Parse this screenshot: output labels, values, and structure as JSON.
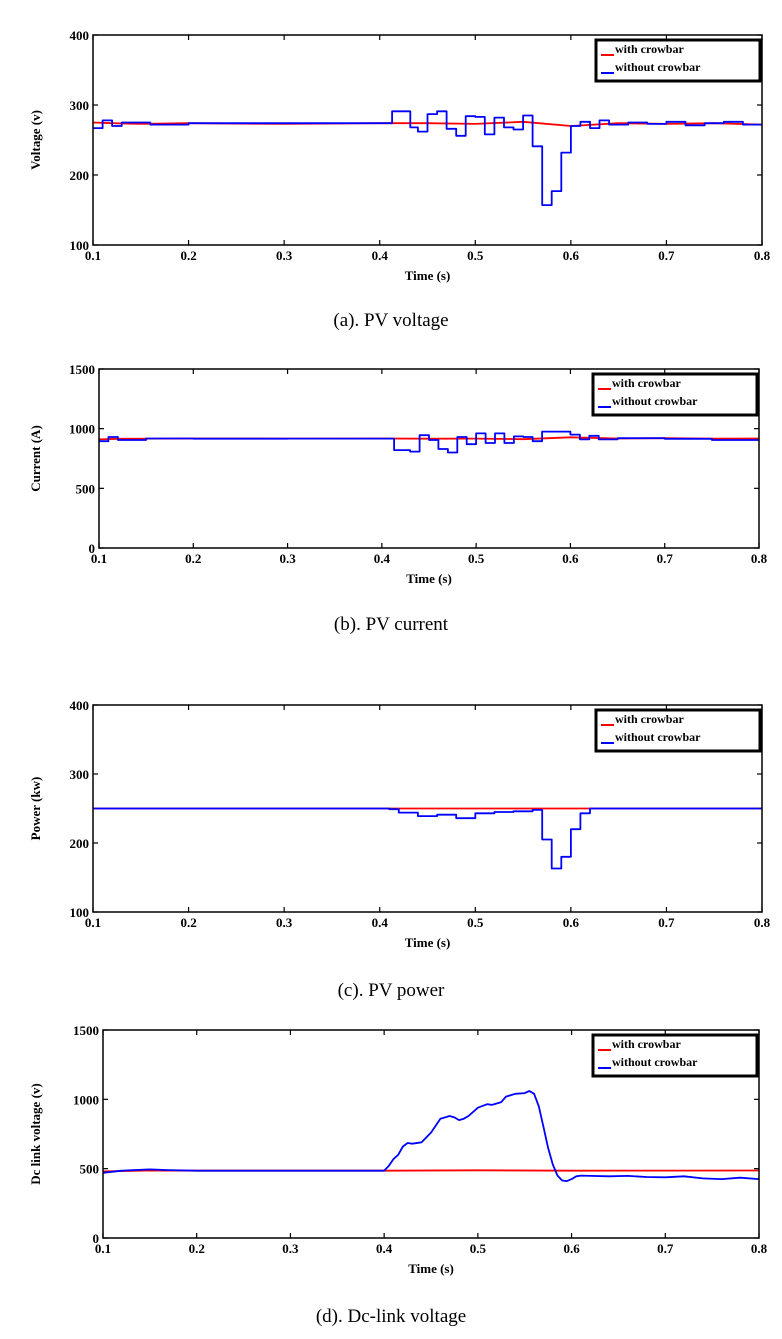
{
  "colors": {
    "with_crowbar": "#ff0000",
    "without_crowbar": "#0000ff",
    "axes": "#000000"
  },
  "chart_data": [
    {
      "type": "line",
      "caption": "(a). PV voltage",
      "xlabel": "Time (s)",
      "ylabel": "Voltage (v)",
      "xlim": [
        0.1,
        0.8
      ],
      "ylim": [
        100,
        400
      ],
      "xticks": [
        "0.1",
        "0.2",
        "0.3",
        "0.4",
        "0.5",
        "0.6",
        "0.7",
        "0.8"
      ],
      "yticks": [
        "100",
        "200",
        "300",
        "400"
      ],
      "legend_position": "top-right",
      "series": [
        {
          "name": "with crowbar",
          "color": "#ff0000",
          "step": false,
          "x": [
            0.1,
            0.12,
            0.15,
            0.2,
            0.3,
            0.4,
            0.45,
            0.5,
            0.55,
            0.6,
            0.65,
            0.7,
            0.75,
            0.8
          ],
          "y": [
            275,
            274,
            273,
            274,
            273,
            274,
            274,
            273,
            276,
            270,
            274,
            273,
            274,
            272
          ]
        },
        {
          "name": "without crowbar",
          "color": "#0000ff",
          "step": true,
          "x": [
            0.1,
            0.11,
            0.12,
            0.13,
            0.16,
            0.2,
            0.3,
            0.413,
            0.432,
            0.44,
            0.45,
            0.46,
            0.47,
            0.48,
            0.49,
            0.5,
            0.51,
            0.52,
            0.53,
            0.54,
            0.55,
            0.56,
            0.57,
            0.58,
            0.59,
            0.6,
            0.61,
            0.62,
            0.63,
            0.64,
            0.66,
            0.68,
            0.7,
            0.72,
            0.74,
            0.76,
            0.78,
            0.8
          ],
          "y": [
            267,
            278,
            270,
            275,
            272,
            274,
            274,
            291,
            268,
            262,
            287,
            291,
            266,
            256,
            284,
            283,
            258,
            282,
            268,
            265,
            285,
            241,
            157,
            177,
            232,
            270,
            276,
            267,
            278,
            272,
            275,
            273,
            276,
            271,
            274,
            276,
            272,
            272
          ]
        }
      ]
    },
    {
      "type": "line",
      "caption": "(b). PV current",
      "xlabel": "Time (s)",
      "ylabel": "Current (A)",
      "xlim": [
        0.1,
        0.8
      ],
      "ylim": [
        0,
        1500
      ],
      "xticks": [
        "0.1",
        "0.2",
        "0.3",
        "0.4",
        "0.5",
        "0.6",
        "0.7",
        "0.8"
      ],
      "yticks": [
        "0",
        "500",
        "1000",
        "1500"
      ],
      "legend_position": "top-right",
      "series": [
        {
          "name": "with crowbar",
          "color": "#ff0000",
          "step": false,
          "x": [
            0.1,
            0.12,
            0.2,
            0.3,
            0.4,
            0.45,
            0.5,
            0.55,
            0.6,
            0.65,
            0.7,
            0.75,
            0.8
          ],
          "y": [
            910,
            915,
            918,
            917,
            918,
            916,
            917,
            912,
            928,
            918,
            920,
            917,
            918
          ]
        },
        {
          "name": "without crowbar",
          "color": "#0000ff",
          "step": true,
          "x": [
            0.1,
            0.11,
            0.12,
            0.15,
            0.2,
            0.3,
            0.413,
            0.43,
            0.44,
            0.45,
            0.46,
            0.47,
            0.48,
            0.49,
            0.5,
            0.51,
            0.52,
            0.53,
            0.54,
            0.55,
            0.56,
            0.57,
            0.6,
            0.61,
            0.62,
            0.63,
            0.65,
            0.7,
            0.75,
            0.8
          ],
          "y": [
            895,
            930,
            905,
            918,
            916,
            917,
            820,
            808,
            945,
            905,
            830,
            800,
            930,
            870,
            960,
            880,
            960,
            880,
            935,
            930,
            895,
            975,
            950,
            910,
            940,
            910,
            920,
            915,
            905,
            918
          ]
        }
      ]
    },
    {
      "type": "line",
      "caption": "(c). PV power",
      "xlabel": "Time (s)",
      "ylabel": "Power (kw)",
      "xlim": [
        0.1,
        0.8
      ],
      "ylim": [
        100,
        400
      ],
      "xticks": [
        "0.1",
        "0.2",
        "0.3",
        "0.4",
        "0.5",
        "0.6",
        "0.7",
        "0.8"
      ],
      "yticks": [
        "100",
        "200",
        "300",
        "400"
      ],
      "legend_position": "top-right",
      "series": [
        {
          "name": "with crowbar",
          "color": "#ff0000",
          "step": false,
          "x": [
            0.1,
            0.8
          ],
          "y": [
            250,
            250
          ]
        },
        {
          "name": "without crowbar",
          "color": "#0000ff",
          "step": true,
          "x": [
            0.1,
            0.41,
            0.42,
            0.44,
            0.46,
            0.48,
            0.5,
            0.52,
            0.54,
            0.56,
            0.57,
            0.58,
            0.59,
            0.6,
            0.61,
            0.62,
            0.8
          ],
          "y": [
            250,
            249,
            244,
            239,
            241,
            236,
            243,
            245,
            246,
            248,
            205,
            163,
            180,
            220,
            243,
            250,
            250
          ]
        }
      ]
    },
    {
      "type": "line",
      "caption": "(d). Dc-link voltage",
      "xlabel": "Time (s)",
      "ylabel": "Dc link voltage (v)",
      "xlim": [
        0.1,
        0.8
      ],
      "ylim": [
        0,
        1500
      ],
      "xticks": [
        "0.1",
        "0.2",
        "0.3",
        "0.4",
        "0.5",
        "0.6",
        "0.7",
        "0.8"
      ],
      "yticks": [
        "0",
        "500",
        "1000",
        "1500"
      ],
      "legend_position": "top-right",
      "series": [
        {
          "name": "with crowbar",
          "color": "#ff0000",
          "step": false,
          "x": [
            0.1,
            0.15,
            0.2,
            0.4,
            0.5,
            0.6,
            0.7,
            0.8
          ],
          "y": [
            480,
            487,
            485,
            485,
            488,
            485,
            486,
            487
          ]
        },
        {
          "name": "without crowbar",
          "color": "#0000ff",
          "step": false,
          "x": [
            0.1,
            0.12,
            0.15,
            0.17,
            0.2,
            0.3,
            0.4,
            0.405,
            0.41,
            0.415,
            0.42,
            0.425,
            0.43,
            0.44,
            0.45,
            0.46,
            0.47,
            0.475,
            0.48,
            0.485,
            0.49,
            0.5,
            0.51,
            0.515,
            0.52,
            0.525,
            0.53,
            0.54,
            0.55,
            0.555,
            0.56,
            0.565,
            0.57,
            0.575,
            0.58,
            0.585,
            0.59,
            0.595,
            0.6,
            0.605,
            0.61,
            0.62,
            0.64,
            0.66,
            0.68,
            0.7,
            0.72,
            0.74,
            0.76,
            0.78,
            0.8
          ],
          "y": [
            470,
            485,
            495,
            490,
            485,
            485,
            485,
            520,
            570,
            600,
            660,
            685,
            680,
            690,
            760,
            860,
            880,
            870,
            850,
            860,
            880,
            940,
            965,
            960,
            970,
            980,
            1020,
            1040,
            1045,
            1060,
            1040,
            950,
            800,
            650,
            530,
            450,
            415,
            410,
            425,
            445,
            450,
            448,
            445,
            448,
            440,
            438,
            445,
            430,
            425,
            435,
            425
          ]
        }
      ]
    }
  ]
}
